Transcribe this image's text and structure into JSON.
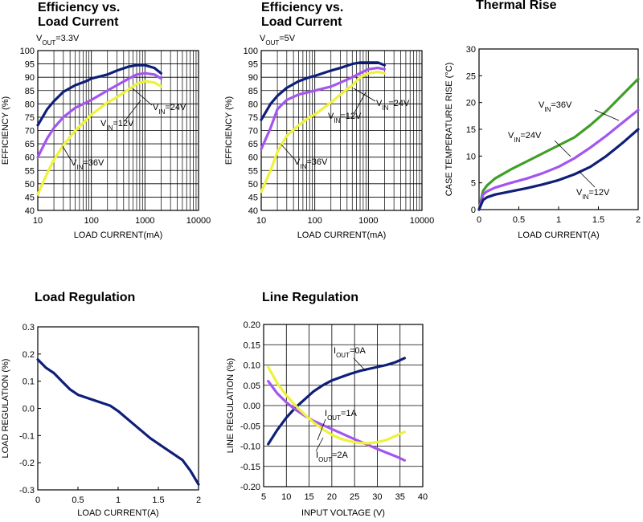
{
  "colors": {
    "navy": "#0f1f78",
    "purple": "#a455f0",
    "yellow": "#eef23a",
    "green": "#3f9f26",
    "grid": "#000000"
  },
  "chart_data": [
    {
      "id": "eff33",
      "type": "line",
      "title_lines": [
        "Efficiency vs.",
        "Load Current"
      ],
      "note": {
        "base": "V",
        "sub": "OUT",
        "rest": "=3.3V"
      },
      "xlabel": "LOAD CURRENT(mA)",
      "ylabel": "EFFICIENCY (%)",
      "xscale": "log",
      "xlim": [
        10,
        10000
      ],
      "ylim": [
        40,
        100
      ],
      "xticks": [
        10,
        100,
        1000,
        10000
      ],
      "xtick_labels": [
        "10",
        "100",
        "1000",
        "10000"
      ],
      "yticks": [
        40,
        45,
        50,
        55,
        60,
        65,
        70,
        75,
        80,
        85,
        90,
        95,
        100
      ],
      "ytick_labels": [
        "40",
        "45",
        "50",
        "55",
        "60",
        "65",
        "70",
        "75",
        "80",
        "85",
        "90",
        "95",
        "100"
      ],
      "grid": true,
      "series": [
        {
          "color": "navy",
          "x": [
            10,
            15,
            20,
            30,
            50,
            80,
            100,
            200,
            300,
            500,
            700,
            1000,
            1500,
            2000
          ],
          "y": [
            72,
            78,
            81,
            84.5,
            87,
            88.5,
            89.5,
            91,
            92.5,
            94,
            94.5,
            94.5,
            93.5,
            91.5
          ]
        },
        {
          "color": "purple",
          "x": [
            10,
            15,
            20,
            30,
            50,
            80,
            100,
            200,
            300,
            500,
            700,
            1000,
            1500,
            2000
          ],
          "y": [
            60,
            67,
            71,
            75,
            78.5,
            80.5,
            81.5,
            85,
            87,
            89.5,
            91,
            91.5,
            91,
            89.5
          ]
        },
        {
          "color": "yellow",
          "x": [
            10,
            15,
            20,
            30,
            50,
            80,
            100,
            200,
            300,
            500,
            700,
            1000,
            1500,
            2000
          ],
          "y": [
            46,
            54,
            59,
            64.5,
            70,
            74,
            76,
            80.5,
            82.5,
            85.5,
            87.5,
            88.5,
            88,
            86.5
          ]
        }
      ],
      "annotations": [
        {
          "base": "V",
          "sub": "IN",
          "rest": "=24V"
        },
        {
          "base": "V",
          "sub": "IN",
          "rest": "=12V"
        },
        {
          "base": "V",
          "sub": "IN",
          "rest": "=36V"
        }
      ]
    },
    {
      "id": "eff5",
      "type": "line",
      "title_lines": [
        "Efficiency vs.",
        "Load Current"
      ],
      "note": {
        "base": "V",
        "sub": "OUT",
        "rest": "=5V"
      },
      "xlabel": "LOAD CURRENT(mA)",
      "ylabel": "EFFICIENCY (%)",
      "xscale": "log",
      "xlim": [
        10,
        10000
      ],
      "ylim": [
        40,
        100
      ],
      "xticks": [
        10,
        100,
        1000,
        10000
      ],
      "xtick_labels": [
        "10",
        "100",
        "1000",
        "10000"
      ],
      "yticks": [
        40,
        45,
        50,
        55,
        60,
        65,
        70,
        75,
        80,
        85,
        90,
        95,
        100
      ],
      "ytick_labels": [
        "40",
        "45",
        "50",
        "55",
        "60",
        "65",
        "70",
        "75",
        "80",
        "85",
        "90",
        "95",
        "100"
      ],
      "grid": true,
      "series": [
        {
          "color": "navy",
          "x": [
            10,
            15,
            20,
            30,
            50,
            80,
            100,
            200,
            300,
            500,
            700,
            1000,
            1500,
            2000
          ],
          "y": [
            74,
            80,
            83,
            86,
            88.5,
            90,
            90.5,
            92.5,
            93.5,
            95,
            95.5,
            95.5,
            95.5,
            94.5
          ]
        },
        {
          "color": "purple",
          "x": [
            10,
            15,
            20,
            30,
            50,
            80,
            100,
            200,
            300,
            500,
            700,
            1000,
            1500,
            2000
          ],
          "y": [
            63,
            71,
            78,
            81.5,
            83.5,
            84.5,
            85,
            86.5,
            88,
            90,
            91.5,
            93,
            93.5,
            93
          ]
        },
        {
          "color": "yellow",
          "x": [
            10,
            15,
            20,
            30,
            50,
            80,
            100,
            200,
            300,
            500,
            700,
            1000,
            1500,
            2000
          ],
          "y": [
            47,
            55,
            62,
            68,
            72,
            75,
            76,
            80.5,
            83.5,
            87,
            90,
            91.5,
            92,
            91.5
          ]
        }
      ],
      "annotations": [
        {
          "base": "V",
          "sub": "IN",
          "rest": "=24V"
        },
        {
          "base": "V",
          "sub": "IN",
          "rest": "=12V"
        },
        {
          "base": "V",
          "sub": "IN",
          "rest": "=36V"
        }
      ]
    },
    {
      "id": "thermal",
      "type": "line",
      "title_lines": [
        "Thermal Rise"
      ],
      "xlabel": "LOAD CURRENT(A)",
      "ylabel": "CASE TEMPERATURE RISE (°C)",
      "xscale": "linear",
      "xlim": [
        0,
        2
      ],
      "ylim": [
        0,
        30
      ],
      "xticks": [
        0,
        0.5,
        1,
        1.5,
        2
      ],
      "xtick_labels": [
        "0",
        "0.5",
        "1",
        "1.5",
        "2"
      ],
      "yticks": [
        0,
        5,
        10,
        15,
        20,
        25,
        30
      ],
      "ytick_labels": [
        "0",
        "5",
        "10",
        "15",
        "20",
        "25",
        "30"
      ],
      "grid": false,
      "series": [
        {
          "color": "green",
          "x": [
            0,
            0.05,
            0.1,
            0.2,
            0.4,
            0.6,
            0.8,
            1.0,
            1.2,
            1.4,
            1.6,
            1.8,
            2.0
          ],
          "y": [
            0,
            3.5,
            4.5,
            5.8,
            7.5,
            9.0,
            10.5,
            12.0,
            13.5,
            15.8,
            18.4,
            21.4,
            24.4
          ]
        },
        {
          "color": "purple",
          "x": [
            0,
            0.05,
            0.1,
            0.2,
            0.4,
            0.6,
            0.8,
            1.0,
            1.2,
            1.4,
            1.6,
            1.8,
            2.0
          ],
          "y": [
            0,
            2.8,
            3.4,
            4.1,
            5.0,
            5.8,
            6.8,
            8.0,
            9.6,
            11.6,
            13.8,
            16.2,
            18.6
          ]
        },
        {
          "color": "navy",
          "x": [
            0,
            0.05,
            0.1,
            0.2,
            0.4,
            0.6,
            0.8,
            1.0,
            1.2,
            1.4,
            1.6,
            1.8,
            2.0
          ],
          "y": [
            0,
            1.8,
            2.3,
            2.8,
            3.4,
            4.0,
            4.7,
            5.5,
            6.6,
            8.0,
            10.0,
            12.4,
            15.0
          ]
        }
      ],
      "annotations": [
        {
          "base": "V",
          "sub": "IN",
          "rest": "=36V"
        },
        {
          "base": "V",
          "sub": "IN",
          "rest": "=24V"
        },
        {
          "base": "V",
          "sub": "IN",
          "rest": "=12V"
        }
      ]
    },
    {
      "id": "loadreg",
      "type": "line",
      "title_lines": [
        "Load Regulation"
      ],
      "xlabel": "LOAD CURRENT(A)",
      "ylabel": "LOAD REGULATION  (%)",
      "xscale": "linear",
      "xlim": [
        0,
        2
      ],
      "ylim": [
        -0.3,
        0.3
      ],
      "xticks": [
        0,
        0.5,
        1,
        1.5,
        2
      ],
      "xtick_labels": [
        "0",
        "0.5",
        "1",
        "1.5",
        "2"
      ],
      "yticks": [
        -0.3,
        -0.2,
        -0.1,
        0,
        0.1,
        0.2,
        0.3
      ],
      "ytick_labels": [
        "-0.3",
        "-0.2",
        "-0.1",
        "0.0",
        "0.1",
        "0.2",
        "0.3"
      ],
      "grid": false,
      "series": [
        {
          "color": "navy",
          "x": [
            0,
            0.1,
            0.2,
            0.3,
            0.4,
            0.5,
            0.7,
            0.9,
            1.0,
            1.2,
            1.4,
            1.6,
            1.8,
            1.9,
            2.0
          ],
          "y": [
            0.18,
            0.15,
            0.13,
            0.1,
            0.07,
            0.05,
            0.03,
            0.01,
            -0.01,
            -0.06,
            -0.11,
            -0.15,
            -0.19,
            -0.23,
            -0.28
          ]
        }
      ],
      "annotations": []
    },
    {
      "id": "linereg",
      "type": "line",
      "title_lines": [
        "Line Regulation"
      ],
      "xlabel": "INPUT VOLTAGE (V)",
      "ylabel": "LINE REGULATION  (%)",
      "xscale": "linear",
      "xlim": [
        5,
        40
      ],
      "ylim": [
        -0.2,
        0.2
      ],
      "xticks": [
        5,
        10,
        15,
        20,
        25,
        30,
        35,
        40
      ],
      "xtick_labels": [
        "5",
        "10",
        "15",
        "20",
        "25",
        "30",
        "35",
        "40"
      ],
      "yticks": [
        -0.2,
        -0.15,
        -0.1,
        -0.05,
        0,
        0.05,
        0.1,
        0.15,
        0.2
      ],
      "ytick_labels": [
        "-0.20",
        "-0.15",
        "-0.10",
        "-0.05",
        "0.00",
        "0.05",
        "0.10",
        "0.15",
        "0.20"
      ],
      "grid": true,
      "series": [
        {
          "color": "navy",
          "x": [
            6,
            8,
            10,
            12,
            14,
            16,
            18,
            20,
            22,
            24,
            26,
            28,
            30,
            32,
            34,
            36
          ],
          "y": [
            -0.095,
            -0.06,
            -0.03,
            -0.005,
            0.015,
            0.035,
            0.05,
            0.062,
            0.07,
            0.078,
            0.085,
            0.09,
            0.095,
            0.1,
            0.107,
            0.117
          ]
        },
        {
          "color": "purple",
          "x": [
            6,
            8,
            10,
            12,
            14,
            16,
            18,
            20,
            22,
            24,
            26,
            28,
            30,
            32,
            34,
            36
          ],
          "y": [
            0.06,
            0.03,
            0.008,
            -0.01,
            -0.025,
            -0.038,
            -0.048,
            -0.058,
            -0.068,
            -0.078,
            -0.088,
            -0.097,
            -0.107,
            -0.116,
            -0.125,
            -0.135
          ]
        },
        {
          "color": "yellow",
          "x": [
            6,
            8,
            10,
            12,
            14,
            16,
            18,
            20,
            22,
            24,
            26,
            28,
            30,
            32,
            34,
            36
          ],
          "y": [
            0.095,
            0.055,
            0.025,
            0.0,
            -0.022,
            -0.042,
            -0.058,
            -0.072,
            -0.082,
            -0.088,
            -0.092,
            -0.093,
            -0.09,
            -0.085,
            -0.075,
            -0.065
          ]
        }
      ],
      "annotations": [
        {
          "base": "I",
          "sub": "OUT",
          "rest": "=0A"
        },
        {
          "base": "I",
          "sub": "OUT",
          "rest": "=1A"
        },
        {
          "base": "I",
          "sub": "OUT",
          "rest": "=2A"
        }
      ]
    }
  ]
}
